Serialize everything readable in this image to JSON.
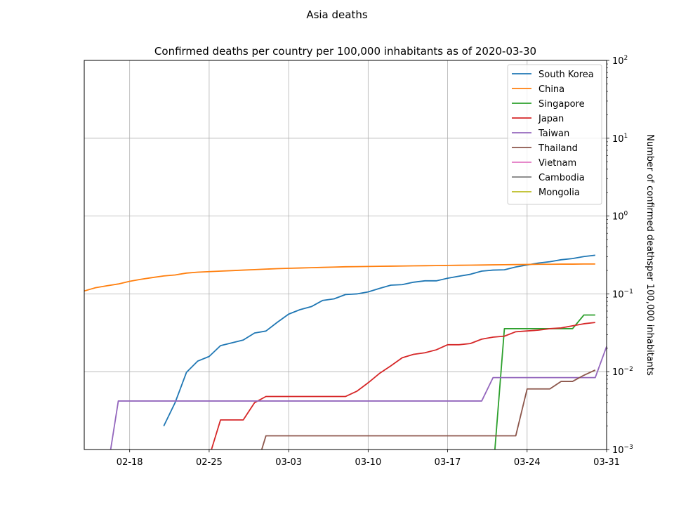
{
  "figure_title": "Asia deaths",
  "chart_data": {
    "type": "line",
    "title": "Confirmed deaths per country per 100,000 inhabitants as of 2020-03-30",
    "xlabel": "",
    "ylabel": "Number of confirmed deathsper 100,000 inhabitants",
    "yscale": "log",
    "ylim": [
      0.001,
      100
    ],
    "xlim": [
      "2020-02-14",
      "2020-03-31"
    ],
    "grid": true,
    "legend_position": "top-right",
    "y_ticks": [
      {
        "value": 0.001,
        "base": "10",
        "exp": "−3"
      },
      {
        "value": 0.01,
        "base": "10",
        "exp": "−2"
      },
      {
        "value": 0.1,
        "base": "10",
        "exp": "−1"
      },
      {
        "value": 1,
        "base": "10",
        "exp": "0"
      },
      {
        "value": 10,
        "base": "10",
        "exp": "1"
      },
      {
        "value": 100,
        "base": "10",
        "exp": "2"
      }
    ],
    "x_ticks": [
      {
        "date": "2020-02-18",
        "label": "02-18"
      },
      {
        "date": "2020-02-25",
        "label": "02-25"
      },
      {
        "date": "2020-03-03",
        "label": "03-03"
      },
      {
        "date": "2020-03-10",
        "label": "03-10"
      },
      {
        "date": "2020-03-17",
        "label": "03-17"
      },
      {
        "date": "2020-03-24",
        "label": "03-24"
      },
      {
        "date": "2020-03-31",
        "label": "03-31"
      }
    ],
    "series": [
      {
        "name": "South Korea",
        "color": "#1f77b4",
        "start": "2020-02-21",
        "values": [
          0.002,
          0.004,
          0.0098,
          0.0137,
          0.0157,
          0.0216,
          0.0235,
          0.0255,
          0.0314,
          0.0333,
          0.0431,
          0.0549,
          0.0627,
          0.0686,
          0.0824,
          0.0863,
          0.098,
          0.0999,
          0.1059,
          0.1176,
          0.1294,
          0.1314,
          0.1412,
          0.1471,
          0.1471,
          0.1588,
          0.1686,
          0.1784,
          0.1961,
          0.202,
          0.2039,
          0.2216,
          0.2353,
          0.249,
          0.2588,
          0.2745,
          0.2843,
          0.302,
          0.3137
        ]
      },
      {
        "name": "China",
        "color": "#ff7f0e",
        "start": "2020-02-14",
        "values": [
          0.109,
          0.12,
          0.127,
          0.134,
          0.145,
          0.154,
          0.162,
          0.17,
          0.175,
          0.185,
          0.19,
          0.193,
          0.196,
          0.199,
          0.202,
          0.205,
          0.208,
          0.211,
          0.213,
          0.215,
          0.217,
          0.219,
          0.221,
          0.223,
          0.224,
          0.225,
          0.226,
          0.227,
          0.228,
          0.229,
          0.23,
          0.231,
          0.232,
          0.233,
          0.234,
          0.235,
          0.236,
          0.237,
          0.238,
          0.239,
          0.24,
          0.24,
          0.241,
          0.241,
          0.242,
          0.242
        ]
      },
      {
        "name": "Singapore",
        "color": "#2ca02c",
        "start": "2020-03-21",
        "values": [
          0.0005,
          0.0357,
          0.0357,
          0.0357,
          0.0357,
          0.0357,
          0.0357,
          0.0357,
          0.0535,
          0.0535
        ]
      },
      {
        "name": "Japan",
        "color": "#d62728",
        "start": "2020-02-25",
        "values": [
          0.0008,
          0.0024,
          0.0024,
          0.0024,
          0.004,
          0.0048,
          0.0048,
          0.0048,
          0.0048,
          0.0048,
          0.0048,
          0.0048,
          0.0048,
          0.0056,
          0.0072,
          0.0095,
          0.0119,
          0.0151,
          0.0167,
          0.0175,
          0.0191,
          0.0222,
          0.0222,
          0.023,
          0.0262,
          0.0278,
          0.0286,
          0.0326,
          0.0334,
          0.0342,
          0.0357,
          0.0365,
          0.0389,
          0.0413,
          0.0429
        ]
      },
      {
        "name": "Taiwan",
        "color": "#9467bd",
        "start": "2020-02-16",
        "values": [
          0.0005,
          0.0042,
          0.0042,
          0.0042,
          0.0042,
          0.0042,
          0.0042,
          0.0042,
          0.0042,
          0.0042,
          0.0042,
          0.0042,
          0.0042,
          0.0042,
          0.0042,
          0.0042,
          0.0042,
          0.0042,
          0.0042,
          0.0042,
          0.0042,
          0.0042,
          0.0042,
          0.0042,
          0.0042,
          0.0042,
          0.0042,
          0.0042,
          0.0042,
          0.0042,
          0.0042,
          0.0042,
          0.0042,
          0.0042,
          0.0084,
          0.0084,
          0.0084,
          0.0084,
          0.0084,
          0.0084,
          0.0084,
          0.0084,
          0.0084,
          0.0084,
          0.0211
        ]
      },
      {
        "name": "Thailand",
        "color": "#8c564b",
        "start": "2020-02-29",
        "values": [
          0.0005,
          0.0015,
          0.0015,
          0.0015,
          0.0015,
          0.0015,
          0.0015,
          0.0015,
          0.0015,
          0.0015,
          0.0015,
          0.0015,
          0.0015,
          0.0015,
          0.0015,
          0.0015,
          0.0015,
          0.0015,
          0.0015,
          0.0015,
          0.0015,
          0.0015,
          0.0015,
          0.0015,
          0.006,
          0.006,
          0.006,
          0.0075,
          0.0075,
          0.009,
          0.0105
        ]
      },
      {
        "name": "Vietnam",
        "color": "#e377c2",
        "start": "2020-03-30",
        "values": []
      },
      {
        "name": "Cambodia",
        "color": "#7f7f7f",
        "start": "2020-03-30",
        "values": []
      },
      {
        "name": "Mongolia",
        "color": "#bcbd22",
        "start": "2020-03-30",
        "values": []
      }
    ]
  }
}
